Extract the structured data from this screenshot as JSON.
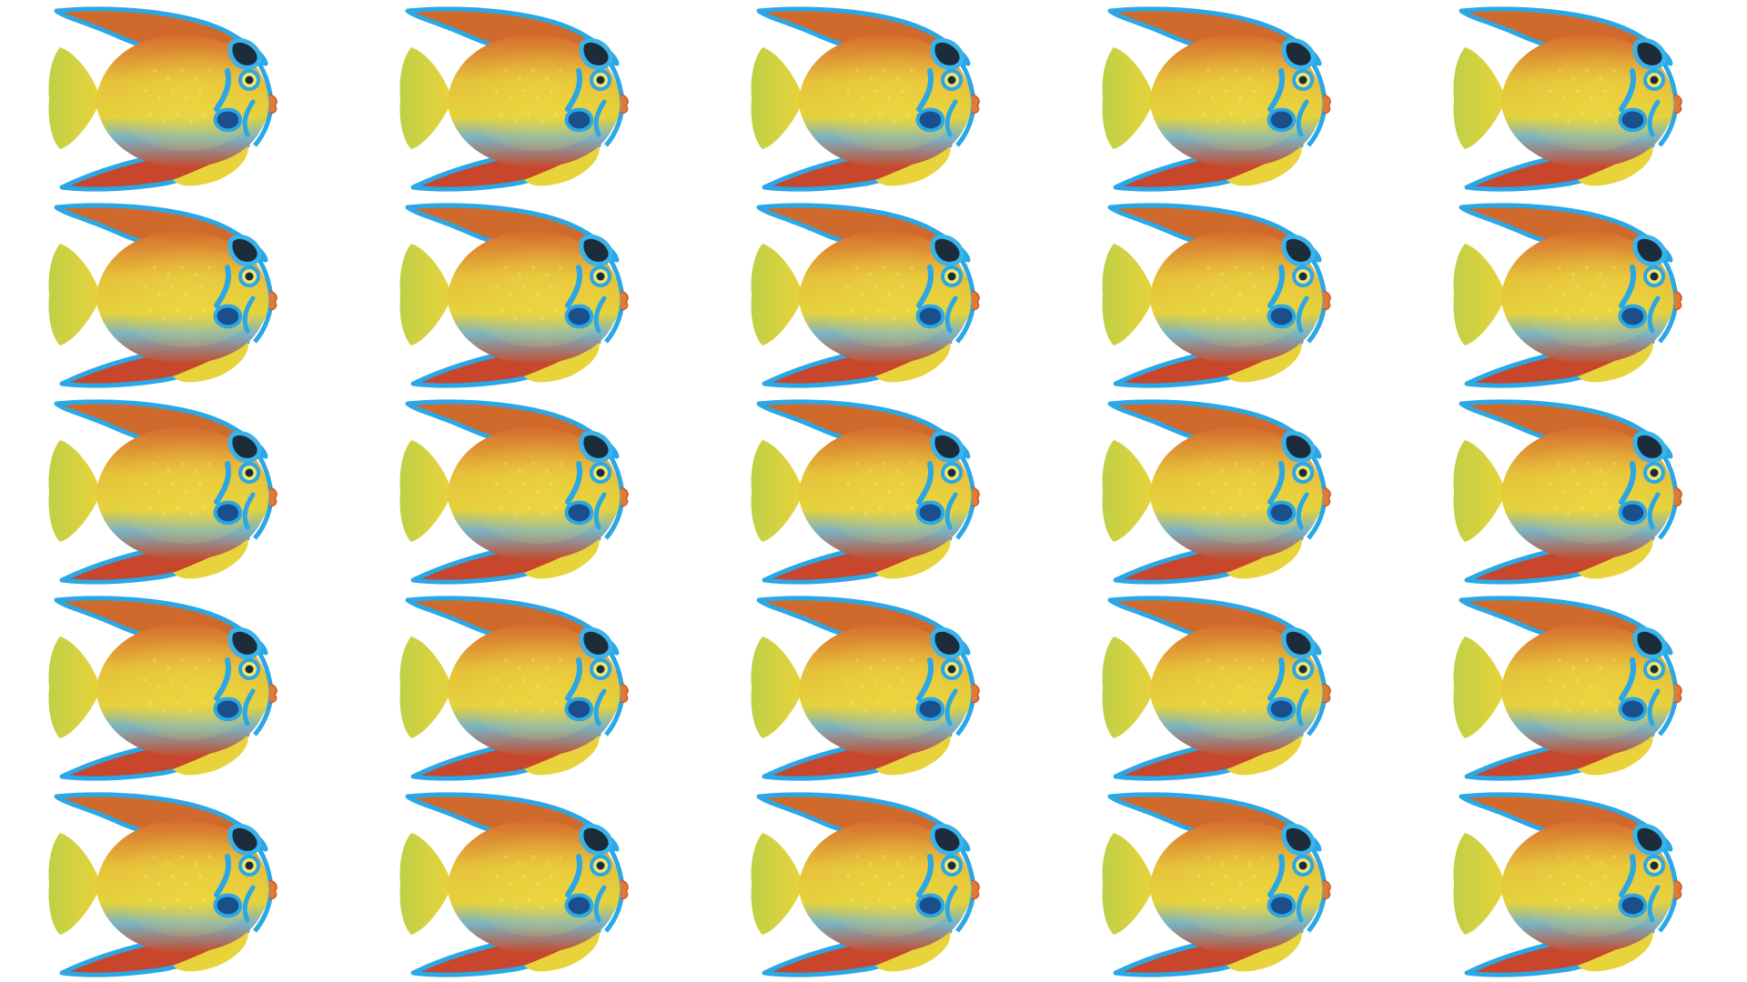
{
  "scene": {
    "subject": "queen angelfish",
    "layout": {
      "rows": 5,
      "columns": 5
    },
    "colors": {
      "background": "#ffffff",
      "body_yellow": "#e7cf3a",
      "body_orange": "#e0862f",
      "body_red": "#c4442a",
      "tail_green": "#c9d64a",
      "fin_blue": "#2aa7e6",
      "crown_dark": "#1d2c3a",
      "mid_blue": "#5aa4c8"
    },
    "icons": [
      "angelfish-icon"
    ]
  }
}
